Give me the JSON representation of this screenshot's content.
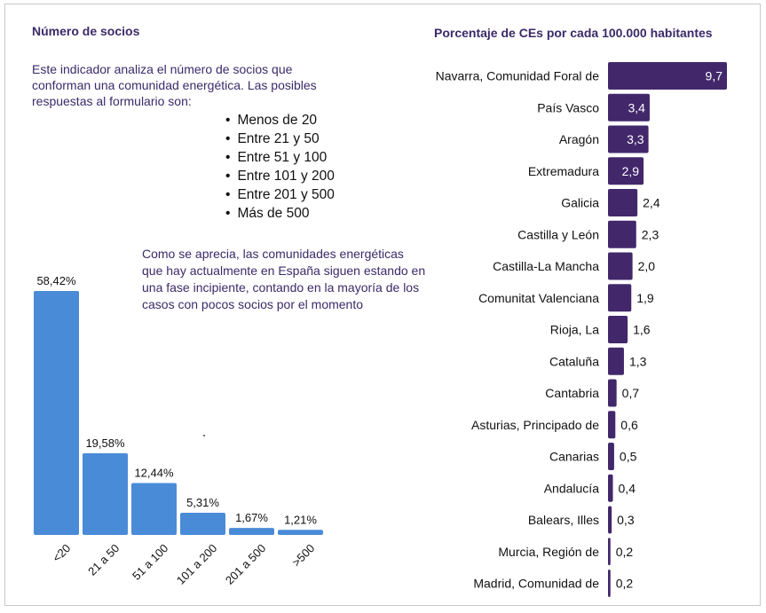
{
  "left_panel": {
    "title": "Número de socios",
    "intro": "Este indicador analiza el número de socios que conforman una comunidad energética. Las posibles respuestas al formulario son:",
    "options": [
      "Menos de 20",
      "Entre 21 y 50",
      "Entre 51 y 100",
      "Entre 101 y 200",
      "Entre 201 y 500",
      "Más de 500"
    ],
    "note": "Como se aprecia, las comunidades energéticas que hay actualmente en España siguen estando en una fase incipiente, contando en la mayoría de los casos con pocos socios por el momento"
  },
  "right_panel": {
    "title": "Porcentaje de CEs por cada 100.000 habitantes"
  },
  "colors": {
    "left_bar": "#4a8bd7",
    "right_bar": "#42286b",
    "title_text": "#3b2a68"
  },
  "chart_data": [
    {
      "type": "bar",
      "orientation": "vertical",
      "categories": [
        "<20",
        "21 a 50",
        "51 a 100",
        "101 a 200",
        "201 a 500",
        ">500"
      ],
      "values": [
        58.42,
        19.58,
        12.44,
        5.31,
        1.67,
        1.21
      ],
      "data_labels": [
        "58,42%",
        "19,58%",
        "12,44%",
        "5,31%",
        "1,67%",
        "1,21%"
      ],
      "unit": "%",
      "ylim": [
        0,
        58.42
      ],
      "grid": false
    },
    {
      "type": "bar",
      "orientation": "horizontal",
      "title": "Porcentaje de CEs por cada 100.000 habitantes",
      "categories": [
        "Navarra, Comunidad Foral de",
        "País Vasco",
        "Aragón",
        "Extremadura",
        "Galicia",
        "Castilla y León",
        "Castilla-La Mancha",
        "Comunitat Valenciana",
        "Rioja, La",
        "Cataluña",
        "Cantabria",
        "Asturias, Principado de",
        "Canarias",
        "Andalucía",
        "Balears, Illes",
        "Murcia, Región de",
        "Madrid, Comunidad de"
      ],
      "values": [
        9.7,
        3.4,
        3.3,
        2.9,
        2.4,
        2.3,
        2.0,
        1.9,
        1.6,
        1.3,
        0.7,
        0.6,
        0.5,
        0.4,
        0.3,
        0.2,
        0.2
      ],
      "data_labels": [
        "9,7",
        "3,4",
        "3,3",
        "2,9",
        "2,4",
        "2,3",
        "2,0",
        "1,9",
        "1,6",
        "1,3",
        "0,7",
        "0,6",
        "0,5",
        "0,4",
        "0,3",
        "0,2",
        "0,2"
      ],
      "xlim": [
        0,
        9.7
      ],
      "grid": false
    }
  ]
}
